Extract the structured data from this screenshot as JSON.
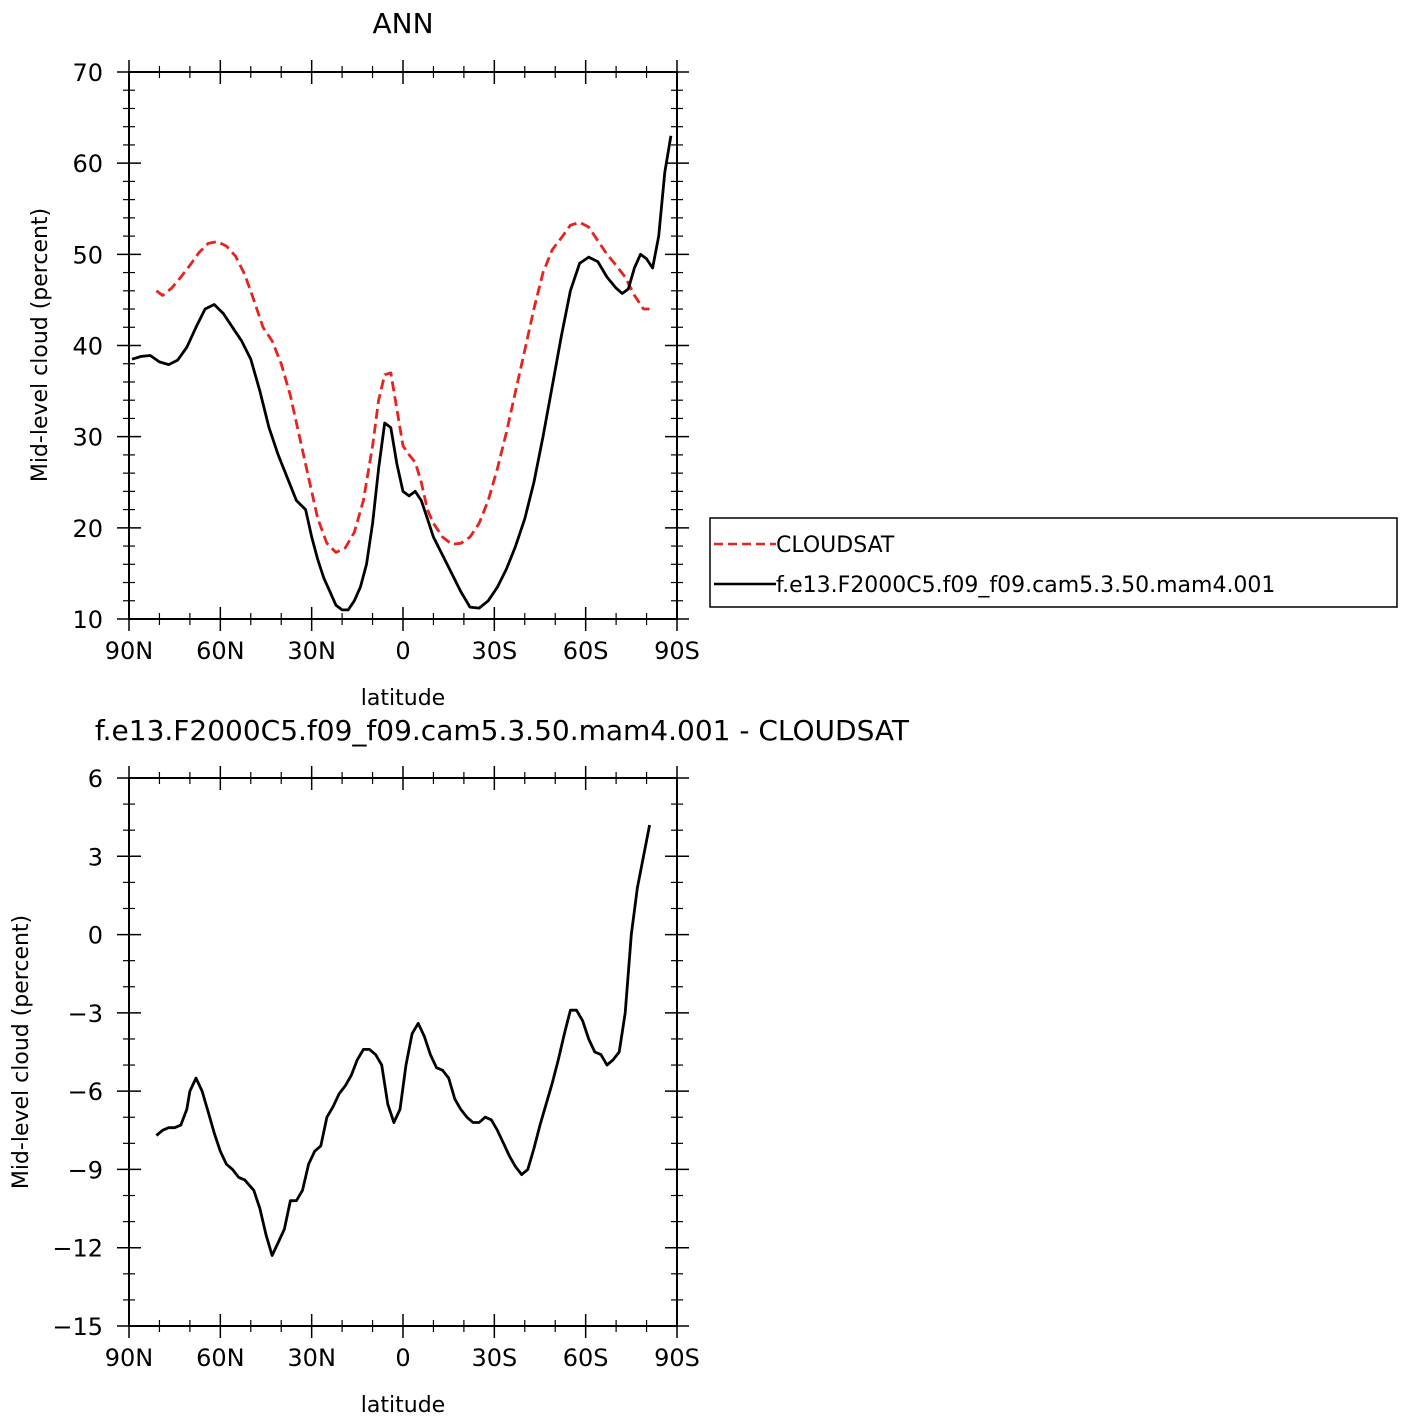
{
  "chart_data": [
    {
      "type": "line",
      "title": "ANN",
      "xlabel": "latitude",
      "ylabel": "Mid-level cloud (percent)",
      "xlim": [
        -90,
        90
      ],
      "ylim": [
        10,
        70
      ],
      "x_ticks": [
        -90,
        -60,
        -30,
        0,
        30,
        60,
        90
      ],
      "x_tick_labels": [
        "90N",
        "60N",
        "30N",
        "0",
        "30S",
        "60S",
        "90S"
      ],
      "y_ticks": [
        10,
        20,
        30,
        40,
        50,
        60,
        70
      ],
      "y_tick_labels": [
        "10",
        "20",
        "30",
        "40",
        "50",
        "60",
        "70"
      ],
      "legend_position": "right",
      "series": [
        {
          "name": "CLOUDSAT",
          "color": "#e8231e",
          "dash": "dashed",
          "x": [
            -81,
            -79,
            -76,
            -73,
            -70,
            -67,
            -64,
            -61,
            -58,
            -55,
            -52,
            -49,
            -46,
            -43,
            -40,
            -37,
            -34,
            -31,
            -28,
            -25,
            -22,
            -19,
            -16,
            -13,
            -10,
            -8,
            -6,
            -4,
            -2,
            0,
            2,
            4,
            6,
            8,
            10,
            13,
            16,
            19,
            22,
            25,
            28,
            31,
            34,
            37,
            40,
            43,
            46,
            49,
            52,
            55,
            58,
            61,
            64,
            67,
            70,
            73,
            76,
            79,
            81
          ],
          "y": [
            46.0,
            45.5,
            46.3,
            47.5,
            48.8,
            50.2,
            51.2,
            51.4,
            50.9,
            49.8,
            47.8,
            45.0,
            42.0,
            40.5,
            38.0,
            34.5,
            30.0,
            25.5,
            21.0,
            18.3,
            17.3,
            17.8,
            19.5,
            23.0,
            29.0,
            34.0,
            36.8,
            37.0,
            33.0,
            29.0,
            28.0,
            27.2,
            25.0,
            22.0,
            20.5,
            19.0,
            18.2,
            18.3,
            19.0,
            20.5,
            23.0,
            26.5,
            30.5,
            35.0,
            39.5,
            44.0,
            48.0,
            50.5,
            51.8,
            53.2,
            53.5,
            53.0,
            51.5,
            50.0,
            48.8,
            47.5,
            45.5,
            44.0,
            44.0
          ],
          "note": ""
        },
        {
          "name": "f.e13.F2000C5.f09_f09.cam5.3.50.mam4.001",
          "color": "#000000",
          "dash": "solid",
          "x": [
            -89,
            -86,
            -83,
            -80,
            -77,
            -74,
            -71,
            -68,
            -65,
            -62,
            -59,
            -56,
            -53,
            -50,
            -47,
            -44,
            -41,
            -38,
            -35,
            -32,
            -30,
            -28,
            -26,
            -24,
            -22,
            -20,
            -18,
            -16,
            -14,
            -12,
            -10,
            -8,
            -6,
            -4,
            -2,
            0,
            2,
            4,
            6,
            8,
            10,
            13,
            16,
            19,
            22,
            25,
            28,
            31,
            34,
            37,
            40,
            43,
            46,
            49,
            52,
            55,
            58,
            61,
            64,
            67,
            70,
            72,
            74,
            76,
            78,
            80,
            82,
            84,
            86,
            88
          ],
          "y": [
            38.5,
            38.8,
            38.9,
            38.2,
            37.9,
            38.4,
            39.8,
            42.0,
            44.0,
            44.5,
            43.5,
            42.0,
            40.5,
            38.5,
            35.0,
            31.0,
            28.0,
            25.5,
            23.0,
            22.0,
            19.0,
            16.5,
            14.5,
            13.0,
            11.5,
            11.0,
            11.0,
            12.0,
            13.5,
            16.0,
            20.5,
            26.5,
            31.5,
            31.0,
            27.0,
            24.0,
            23.5,
            24.0,
            23.0,
            21.0,
            19.0,
            17.0,
            15.0,
            13.0,
            11.3,
            11.2,
            12.0,
            13.5,
            15.5,
            18.0,
            21.0,
            25.0,
            30.0,
            35.5,
            41.0,
            46.0,
            49.0,
            49.7,
            49.2,
            47.5,
            46.3,
            45.7,
            46.2,
            48.5,
            50.0,
            49.5,
            48.5,
            52.0,
            59.0,
            63.0
          ]
        }
      ]
    },
    {
      "type": "line",
      "title": "f.e13.F2000C5.f09_f09.cam5.3.50.mam4.001  -  CLOUDSAT",
      "xlabel": "latitude",
      "ylabel": "Mid-level cloud (percent)",
      "xlim": [
        -90,
        90
      ],
      "ylim": [
        -15,
        6
      ],
      "x_ticks": [
        -90,
        -60,
        -30,
        0,
        30,
        60,
        90
      ],
      "x_tick_labels": [
        "90N",
        "60N",
        "30N",
        "0",
        "30S",
        "60S",
        "90S"
      ],
      "y_ticks": [
        -15,
        -12,
        -9,
        -6,
        -3,
        0,
        3,
        6
      ],
      "y_tick_labels": [
        "−15",
        "−12",
        "−9",
        "−6",
        "−3",
        "0",
        "3",
        "6"
      ],
      "series": [
        {
          "color": "#000000",
          "dash": "solid",
          "x": [
            -81,
            -79,
            -77,
            -75,
            -73,
            -71,
            -70,
            -68,
            -66,
            -64,
            -62,
            -60,
            -58,
            -56,
            -54,
            -52,
            -49,
            -47,
            -45,
            -43,
            -41,
            -39,
            -37,
            -35,
            -33,
            -31,
            -29,
            -27,
            -25,
            -23,
            -21,
            -19,
            -17,
            -15,
            -13,
            -11,
            -9,
            -7,
            -5,
            -3,
            -1,
            1,
            3,
            5,
            7,
            9,
            11,
            13,
            15,
            17,
            19,
            21,
            23,
            25,
            27,
            29,
            31,
            33,
            35,
            37,
            39,
            41,
            43,
            45,
            47,
            49,
            51,
            53,
            55,
            57,
            59,
            61,
            63,
            65,
            67,
            69,
            71,
            73,
            75,
            77,
            79,
            81
          ],
          "y": [
            -7.7,
            -7.5,
            -7.4,
            -7.4,
            -7.3,
            -6.7,
            -6.0,
            -5.5,
            -6.0,
            -6.8,
            -7.6,
            -8.3,
            -8.8,
            -9.0,
            -9.3,
            -9.4,
            -9.8,
            -10.5,
            -11.5,
            -12.3,
            -11.8,
            -11.3,
            -10.2,
            -10.2,
            -9.8,
            -8.8,
            -8.3,
            -8.1,
            -7.0,
            -6.6,
            -6.1,
            -5.8,
            -5.4,
            -4.8,
            -4.4,
            -4.4,
            -4.6,
            -5.0,
            -6.5,
            -7.2,
            -6.7,
            -5.0,
            -3.8,
            -3.4,
            -3.9,
            -4.6,
            -5.1,
            -5.2,
            -5.5,
            -6.3,
            -6.7,
            -7.0,
            -7.2,
            -7.2,
            -7.0,
            -7.1,
            -7.5,
            -8.0,
            -8.5,
            -8.9,
            -9.2,
            -9.0,
            -8.2,
            -7.3,
            -6.5,
            -5.7,
            -4.8,
            -3.8,
            -2.9,
            -2.9,
            -3.3,
            -4.0,
            -4.5,
            -4.6,
            -5.0,
            -4.8,
            -4.5,
            -3.0,
            0.0,
            1.8,
            3.0,
            4.2
          ]
        }
      ]
    }
  ]
}
